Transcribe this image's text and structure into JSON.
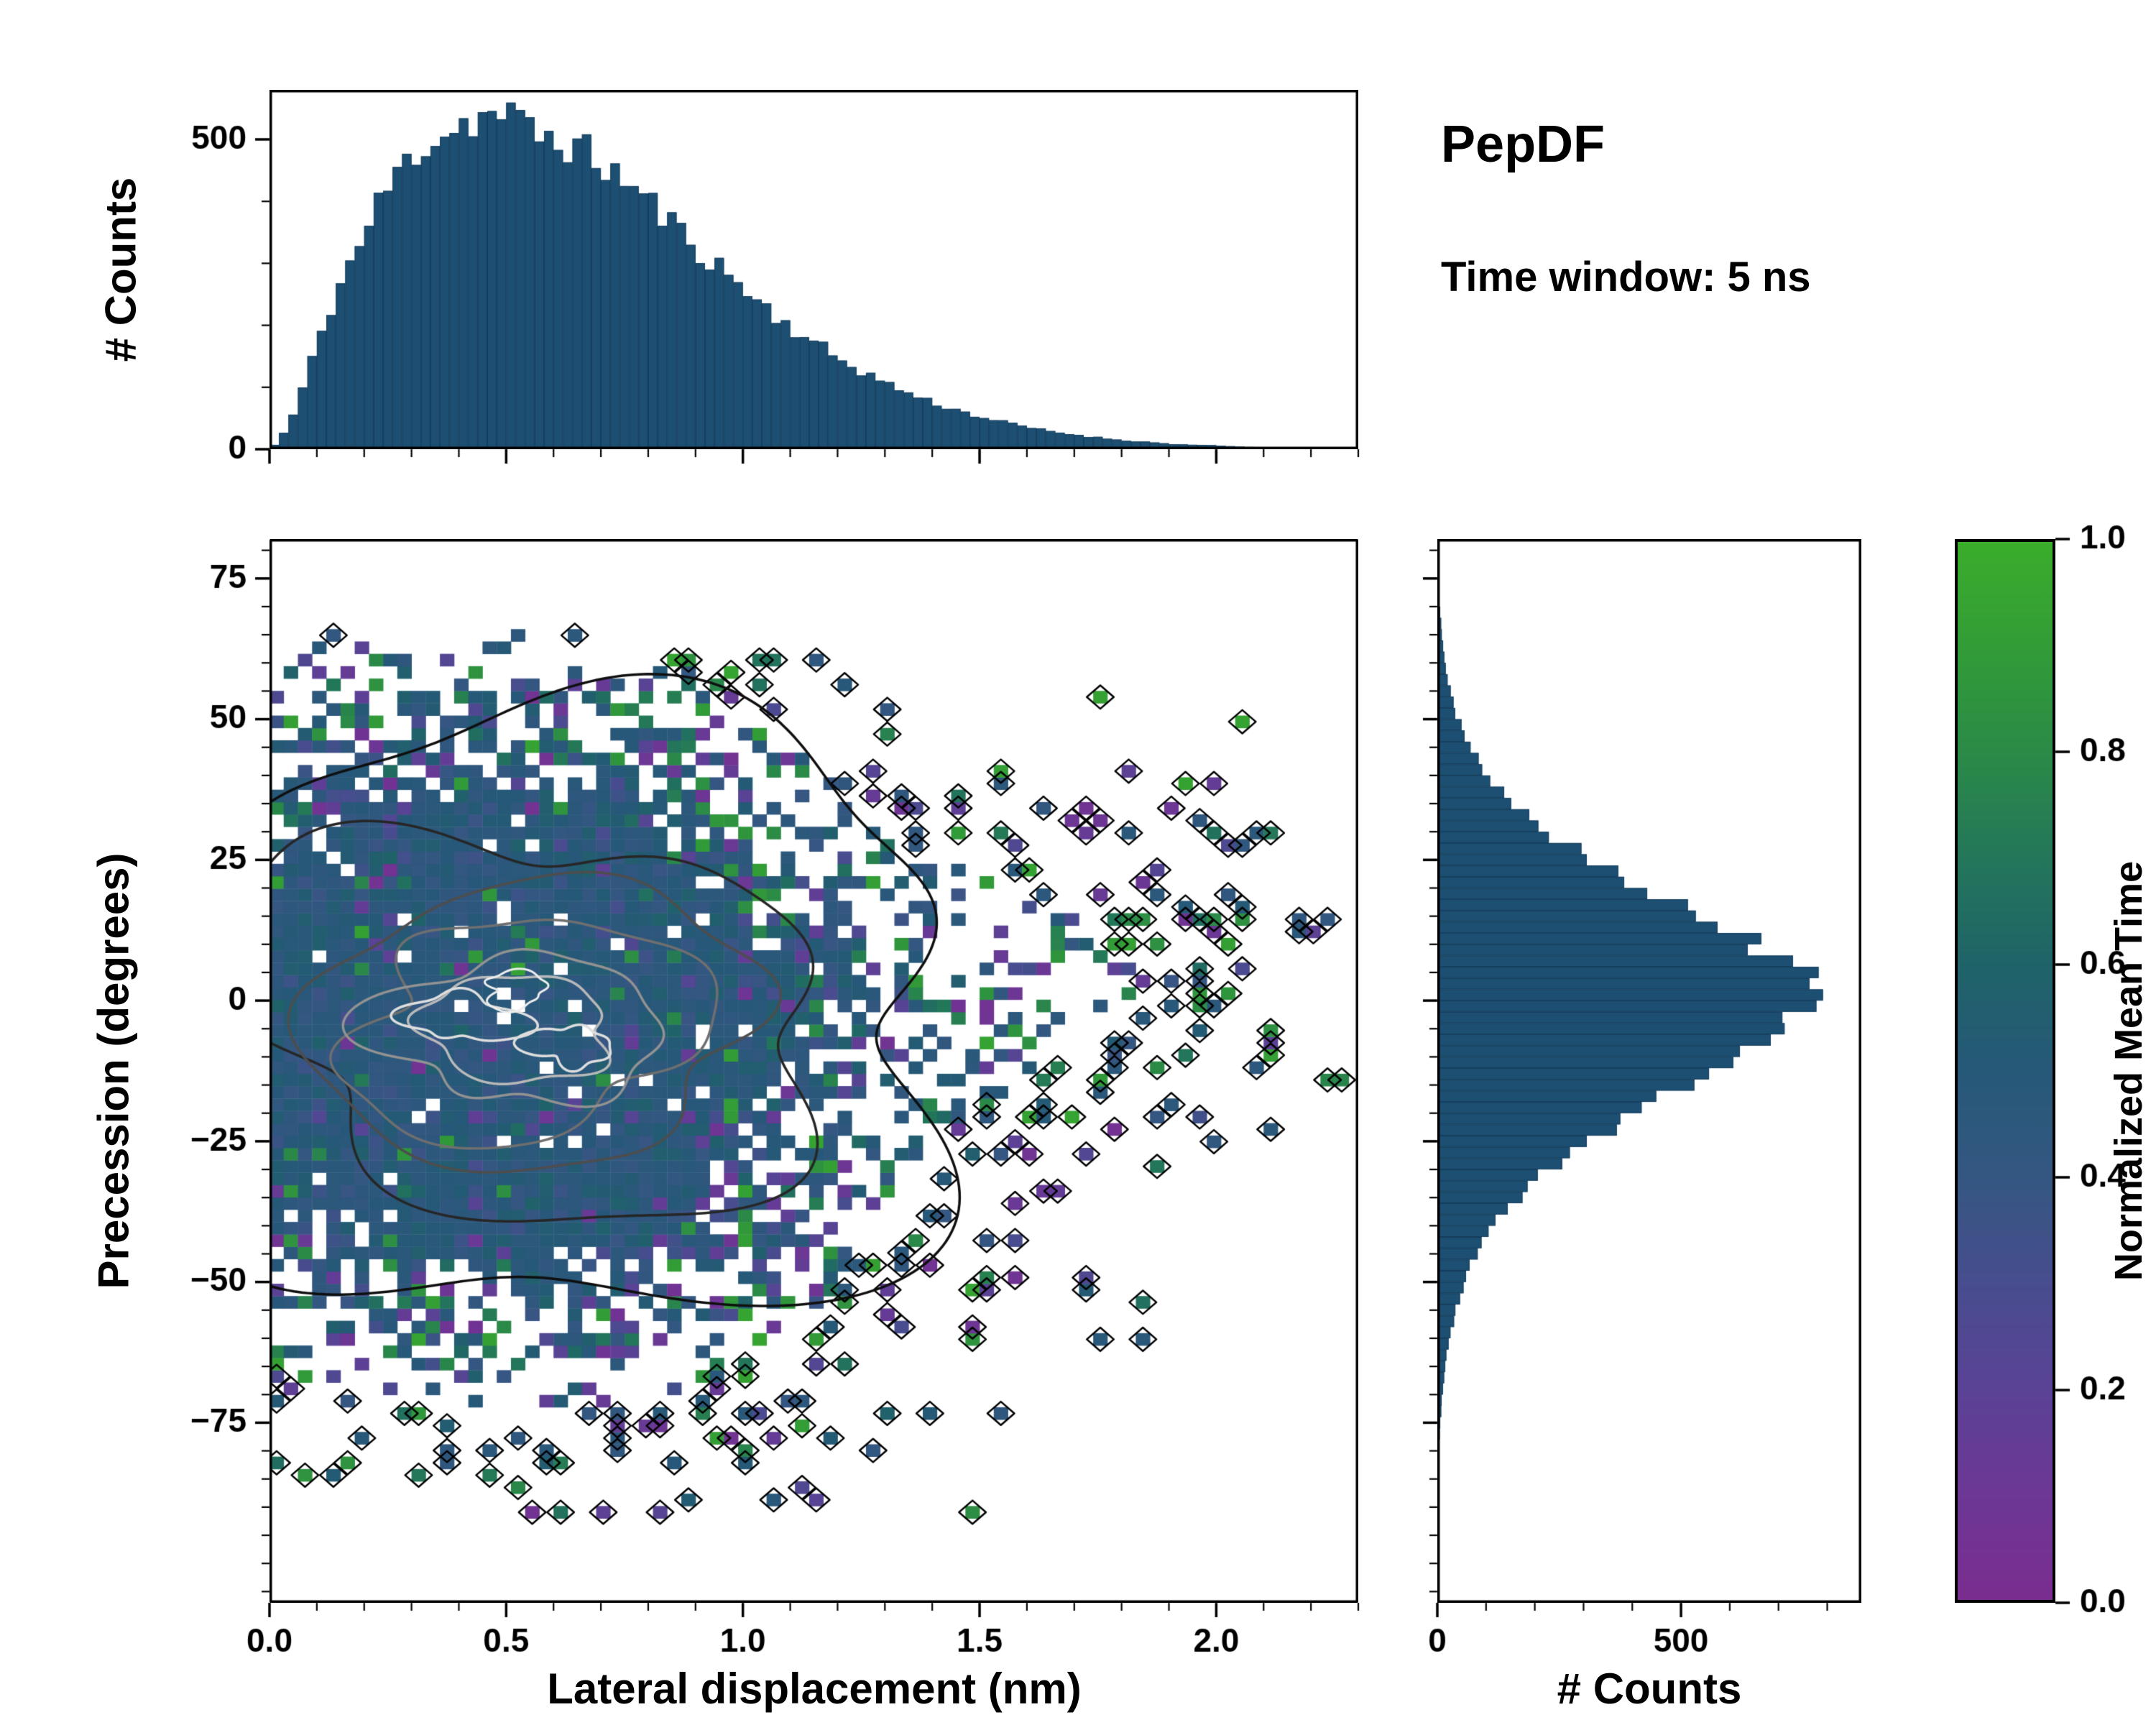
{
  "annotations": {
    "title": "PepDF",
    "subtitle": "Time window: 5 ns"
  },
  "labels": {
    "top_ylabel": "# Counts",
    "joint_xlabel": "Lateral displacement (nm)",
    "joint_ylabel": "Precession (degrees)",
    "right_xlabel": "# Counts"
  },
  "colorbar": {
    "label": "Normalized Mean Time",
    "range": [
      0,
      1
    ],
    "ticks": {
      "values": [
        0,
        0.2,
        0.4,
        0.6,
        0.8,
        1
      ],
      "labels": [
        "0.0",
        "0.2",
        "0.4",
        "0.6",
        "0.8",
        "1.0"
      ]
    }
  },
  "colormap": {
    "stops": [
      {
        "t": 0.0,
        "c": "#7a2d8f"
      },
      {
        "t": 0.1,
        "c": "#6c3795"
      },
      {
        "t": 0.2,
        "c": "#5a4295"
      },
      {
        "t": 0.3,
        "c": "#474d8e"
      },
      {
        "t": 0.4,
        "c": "#345781"
      },
      {
        "t": 0.5,
        "c": "#265878"
      },
      {
        "t": 0.6,
        "c": "#1f6368"
      },
      {
        "t": 0.7,
        "c": "#23765a"
      },
      {
        "t": 0.8,
        "c": "#2b8a47"
      },
      {
        "t": 0.9,
        "c": "#329c37"
      },
      {
        "t": 1.0,
        "c": "#3aad2b"
      }
    ]
  },
  "colors": {
    "hist_bar": "#1d4f73",
    "hist_bar_edge": "#163e5c",
    "spine": "#000000",
    "tick": "#000000",
    "background": "#ffffff"
  },
  "chart_data": [
    {
      "id": "top_hist",
      "type": "bar",
      "role": "marginal-x",
      "ylabel": "# Counts",
      "xlim": [
        0,
        2.3
      ],
      "ylim": [
        0,
        580
      ],
      "data_range": [
        0,
        2.28
      ],
      "bins": 114,
      "jitter": 0.07,
      "seed": 11,
      "yticks": {
        "values": [
          0,
          500
        ],
        "labels": [
          "0",
          "500"
        ],
        "minor_step": 100
      },
      "xticks": {
        "values": [
          0,
          0.5,
          1,
          1.5,
          2
        ],
        "labels": [
          "",
          "",
          "",
          "",
          ""
        ],
        "minor_step": 0.1
      },
      "envelope": [
        [
          0,
          2
        ],
        [
          0.02,
          12
        ],
        [
          0.05,
          55
        ],
        [
          0.08,
          120
        ],
        [
          0.11,
          190
        ],
        [
          0.14,
          250
        ],
        [
          0.17,
          300
        ],
        [
          0.2,
          345
        ],
        [
          0.23,
          395
        ],
        [
          0.26,
          435
        ],
        [
          0.29,
          465
        ],
        [
          0.32,
          490
        ],
        [
          0.35,
          505
        ],
        [
          0.38,
          515
        ],
        [
          0.41,
          528
        ],
        [
          0.44,
          535
        ],
        [
          0.47,
          540
        ],
        [
          0.5,
          538
        ],
        [
          0.53,
          525
        ],
        [
          0.56,
          512
        ],
        [
          0.59,
          505
        ],
        [
          0.62,
          498
        ],
        [
          0.65,
          485
        ],
        [
          0.68,
          472
        ],
        [
          0.72,
          452
        ],
        [
          0.76,
          428
        ],
        [
          0.8,
          402
        ],
        [
          0.84,
          372
        ],
        [
          0.88,
          342
        ],
        [
          0.92,
          315
        ],
        [
          0.96,
          288
        ],
        [
          1.0,
          262
        ],
        [
          1.05,
          228
        ],
        [
          1.1,
          198
        ],
        [
          1.15,
          172
        ],
        [
          1.2,
          148
        ],
        [
          1.25,
          127
        ],
        [
          1.3,
          108
        ],
        [
          1.35,
          91
        ],
        [
          1.4,
          76
        ],
        [
          1.45,
          64
        ],
        [
          1.5,
          53
        ],
        [
          1.55,
          44
        ],
        [
          1.6,
          36
        ],
        [
          1.65,
          29
        ],
        [
          1.7,
          24
        ],
        [
          1.75,
          19
        ],
        [
          1.8,
          15
        ],
        [
          1.85,
          12
        ],
        [
          1.9,
          9
        ],
        [
          1.95,
          7
        ],
        [
          2.0,
          6
        ],
        [
          2.05,
          4
        ],
        [
          2.1,
          3
        ],
        [
          2.15,
          3
        ],
        [
          2.2,
          2
        ],
        [
          2.25,
          1
        ],
        [
          2.28,
          1
        ]
      ]
    },
    {
      "id": "joint",
      "type": "heatmap",
      "role": "joint",
      "xlabel": "Lateral displacement (nm)",
      "ylabel": "Precession (degrees)",
      "color_meaning": "Normalized Mean Time",
      "xlim": [
        0,
        2.3
      ],
      "ylim": [
        -107,
        82
      ],
      "seed": 42,
      "xticks": {
        "values": [
          0,
          0.5,
          1,
          1.5,
          2
        ],
        "labels": [
          "0.0",
          "0.5",
          "1.0",
          "1.5",
          "2.0"
        ],
        "minor_step": 0.1
      },
      "yticks": {
        "values": [
          75,
          50,
          25,
          0,
          -25,
          -50,
          -75
        ],
        "labels": [
          "75",
          "50",
          "25",
          "0",
          "−25",
          "−50",
          "−75"
        ],
        "minor_step": 5
      },
      "grid": {
        "nx": 76,
        "ny": 72,
        "x0": 0,
        "x1": 2.28,
        "y0": -92,
        "y1": 66
      },
      "density": {
        "components": [
          {
            "w": 1.0,
            "cx": 0.55,
            "cy": -3,
            "sx": 0.34,
            "sy": 27
          },
          {
            "w": 0.15,
            "cx": 1.2,
            "cy": 3,
            "sx": 0.55,
            "sy": 16
          },
          {
            "w": 0.12,
            "cx": 0.6,
            "cy": -38,
            "sx": 0.45,
            "sy": 26
          },
          {
            "w": 0.08,
            "cx": 0.45,
            "cy": 40,
            "sx": 0.4,
            "sy": 20
          },
          {
            "w": 0.3,
            "cx": 0.08,
            "cy": 0,
            "sx": 0.25,
            "sy": 30
          }
        ],
        "presence_scale": 1.6,
        "presence_pow": 0.75,
        "presence_max": 0.965,
        "isolated_threshold": 0.08
      },
      "value_model": {
        "base": 0.47,
        "spread": 0.13,
        "outlier_base": 0.07,
        "outlier_edge": 0.55,
        "edge_sharpness": 1.8,
        "green": [
          0.62,
          0.33
        ],
        "purple": [
          0.05,
          0.28
        ]
      },
      "contours": {
        "levels": [
          {
            "seed": 101,
            "cx": 0.58,
            "cy": -3,
            "rx": 0.95,
            "ry": 51,
            "amp": 0.17,
            "color": "#0f0f0f",
            "lw": 3.5
          },
          {
            "seed": 102,
            "cx": 0.56,
            "cy": -4,
            "rx": 0.63,
            "ry": 34,
            "amp": 0.14,
            "color": "#262626",
            "lw": 3.5
          },
          {
            "seed": 103,
            "cx": 0.55,
            "cy": -4,
            "rx": 0.48,
            "ry": 25,
            "amp": 0.13,
            "color": "#4d4d4d",
            "lw": 3.5
          },
          {
            "seed": 104,
            "cx": 0.54,
            "cy": -5,
            "rx": 0.38,
            "ry": 19,
            "amp": 0.13,
            "color": "#6f6f6f",
            "lw": 3.5
          },
          {
            "seed": 105,
            "cx": 0.53,
            "cy": -5,
            "rx": 0.29,
            "ry": 13.5,
            "amp": 0.14,
            "color": "#929292",
            "lw": 3.5
          },
          {
            "seed": 106,
            "cx": 0.52,
            "cy": -5,
            "rx": 0.21,
            "ry": 9,
            "amp": 0.16,
            "color": "#b9b9b9",
            "lw": 3.5
          },
          {
            "seed": 107,
            "cx": 0.41,
            "cy": -3,
            "rx": 0.11,
            "ry": 4.8,
            "amp": 0.22,
            "color": "#dedede",
            "lw": 3.5
          },
          {
            "seed": 108,
            "cx": 0.63,
            "cy": -8,
            "rx": 0.085,
            "ry": 3.8,
            "amp": 0.22,
            "color": "#dedede",
            "lw": 3.5
          },
          {
            "seed": 109,
            "cx": 0.52,
            "cy": 2,
            "rx": 0.07,
            "ry": 3,
            "amp": 0.2,
            "color": "#ededed",
            "lw": 3
          }
        ]
      }
    },
    {
      "id": "right_hist",
      "type": "barh",
      "role": "marginal-y",
      "xlabel": "# Counts",
      "xlim": [
        0,
        870
      ],
      "ylim": [
        -107,
        82
      ],
      "data_range": [
        -90,
        80
      ],
      "bins": 85,
      "jitter": 0.06,
      "seed": 5,
      "xticks": {
        "values": [
          0,
          500
        ],
        "labels": [
          "0",
          "500"
        ],
        "minor_step": 100
      },
      "yticks": {
        "values": [
          75,
          50,
          25,
          0,
          -25,
          -50,
          -75
        ],
        "labels": [
          "",
          "",
          "",
          "",
          "",
          "",
          ""
        ],
        "minor_step": 5
      },
      "envelope": [
        [
          -90,
          0
        ],
        [
          -85,
          1
        ],
        [
          -80,
          3
        ],
        [
          -75,
          6
        ],
        [
          -70,
          10
        ],
        [
          -65,
          16
        ],
        [
          -60,
          25
        ],
        [
          -55,
          38
        ],
        [
          -50,
          56
        ],
        [
          -45,
          80
        ],
        [
          -40,
          115
        ],
        [
          -35,
          165
        ],
        [
          -30,
          230
        ],
        [
          -25,
          310
        ],
        [
          -20,
          405
        ],
        [
          -15,
          505
        ],
        [
          -10,
          600
        ],
        [
          -6,
          680
        ],
        [
          -3,
          740
        ],
        [
          0,
          778
        ],
        [
          2,
          790
        ],
        [
          4,
          772
        ],
        [
          6,
          742
        ],
        [
          10,
          655
        ],
        [
          15,
          540
        ],
        [
          20,
          420
        ],
        [
          25,
          315
        ],
        [
          30,
          225
        ],
        [
          35,
          155
        ],
        [
          40,
          104
        ],
        [
          45,
          68
        ],
        [
          50,
          42
        ],
        [
          55,
          26
        ],
        [
          60,
          15
        ],
        [
          65,
          9
        ],
        [
          70,
          5
        ],
        [
          75,
          2
        ],
        [
          80,
          1
        ]
      ]
    }
  ]
}
